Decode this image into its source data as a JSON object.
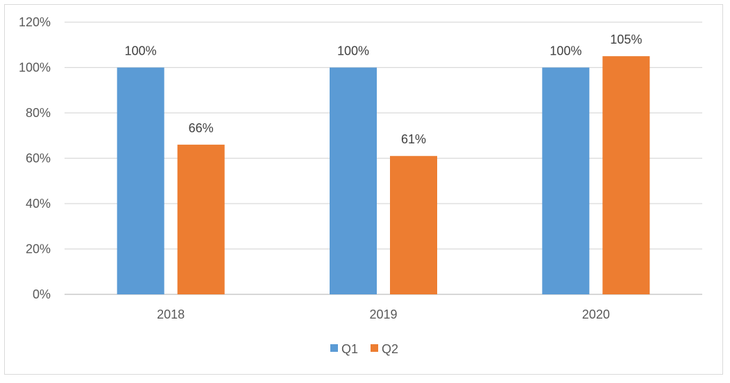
{
  "chart_data": {
    "type": "bar",
    "title": "",
    "xlabel": "",
    "ylabel": "",
    "categories": [
      "2018",
      "2019",
      "2020"
    ],
    "series": [
      {
        "name": "Q1",
        "values": [
          100,
          100,
          100
        ],
        "labels": [
          "100%",
          "100%",
          "100%"
        ],
        "color": "#5b9bd5"
      },
      {
        "name": "Q2",
        "values": [
          66,
          61,
          105
        ],
        "labels": [
          "66%",
          "61%",
          "105%"
        ],
        "color": "#ed7d31"
      }
    ],
    "ylim": [
      0,
      120
    ],
    "yticks": [
      0,
      20,
      40,
      60,
      80,
      100,
      120
    ],
    "ytick_labels": [
      "0%",
      "20%",
      "40%",
      "60%",
      "80%",
      "100%",
      "120%"
    ],
    "grid": true,
    "gridline_color": "#d9d9d9",
    "legend_position": "bottom"
  }
}
